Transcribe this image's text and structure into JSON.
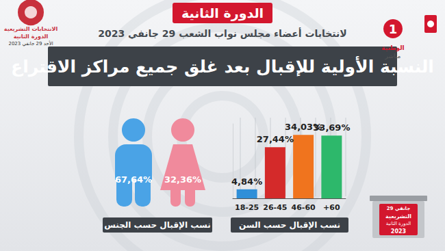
{
  "header": {
    "badge": "الدورة الثانية",
    "subtitle": "لانتخابات أعضاء مجلس نواب الشعب 29 جانفي 2023",
    "title": "النسبة الأولية للإقبال بعد غلق جميع مراكز الاقتراع"
  },
  "logos": {
    "left": [
      "الانتخابات التشريعية",
      "الدورة الثانية",
      "الأحد 29 جانفي 2023"
    ],
    "right": {
      "channel_number": "1",
      "texts": [
        "الوطنية",
        "مباشر"
      ]
    },
    "ballot_box": [
      "29 جانفي",
      "التشريعية",
      "الدورة الثانية",
      "2023"
    ]
  },
  "chart_data": [
    {
      "type": "pictogram",
      "title": "نسب الإقبال حسب الجنس",
      "values": [
        67.64,
        32.36
      ],
      "value_labels": [
        "67,64%",
        "32,36%"
      ],
      "colors": [
        "#4aa3e6",
        "#f08a9c"
      ],
      "data_labels": true,
      "tick_labels": false
    },
    {
      "type": "bar",
      "title": "نسب الإقبال حسب السن",
      "categories": [
        "18-25",
        "26-45",
        "46-60",
        "+60"
      ],
      "values": [
        4.84,
        27.44,
        34.03,
        33.69
      ],
      "value_labels": [
        "4,84%",
        "27,44%",
        "34,03%",
        "33,69%"
      ],
      "colors": [
        "#2f8fd8",
        "#d42a2a",
        "#f0741e",
        "#2db86b"
      ],
      "ylim": [
        0,
        40
      ],
      "grid": false,
      "data_labels": true,
      "tick_labels": "x"
    }
  ]
}
